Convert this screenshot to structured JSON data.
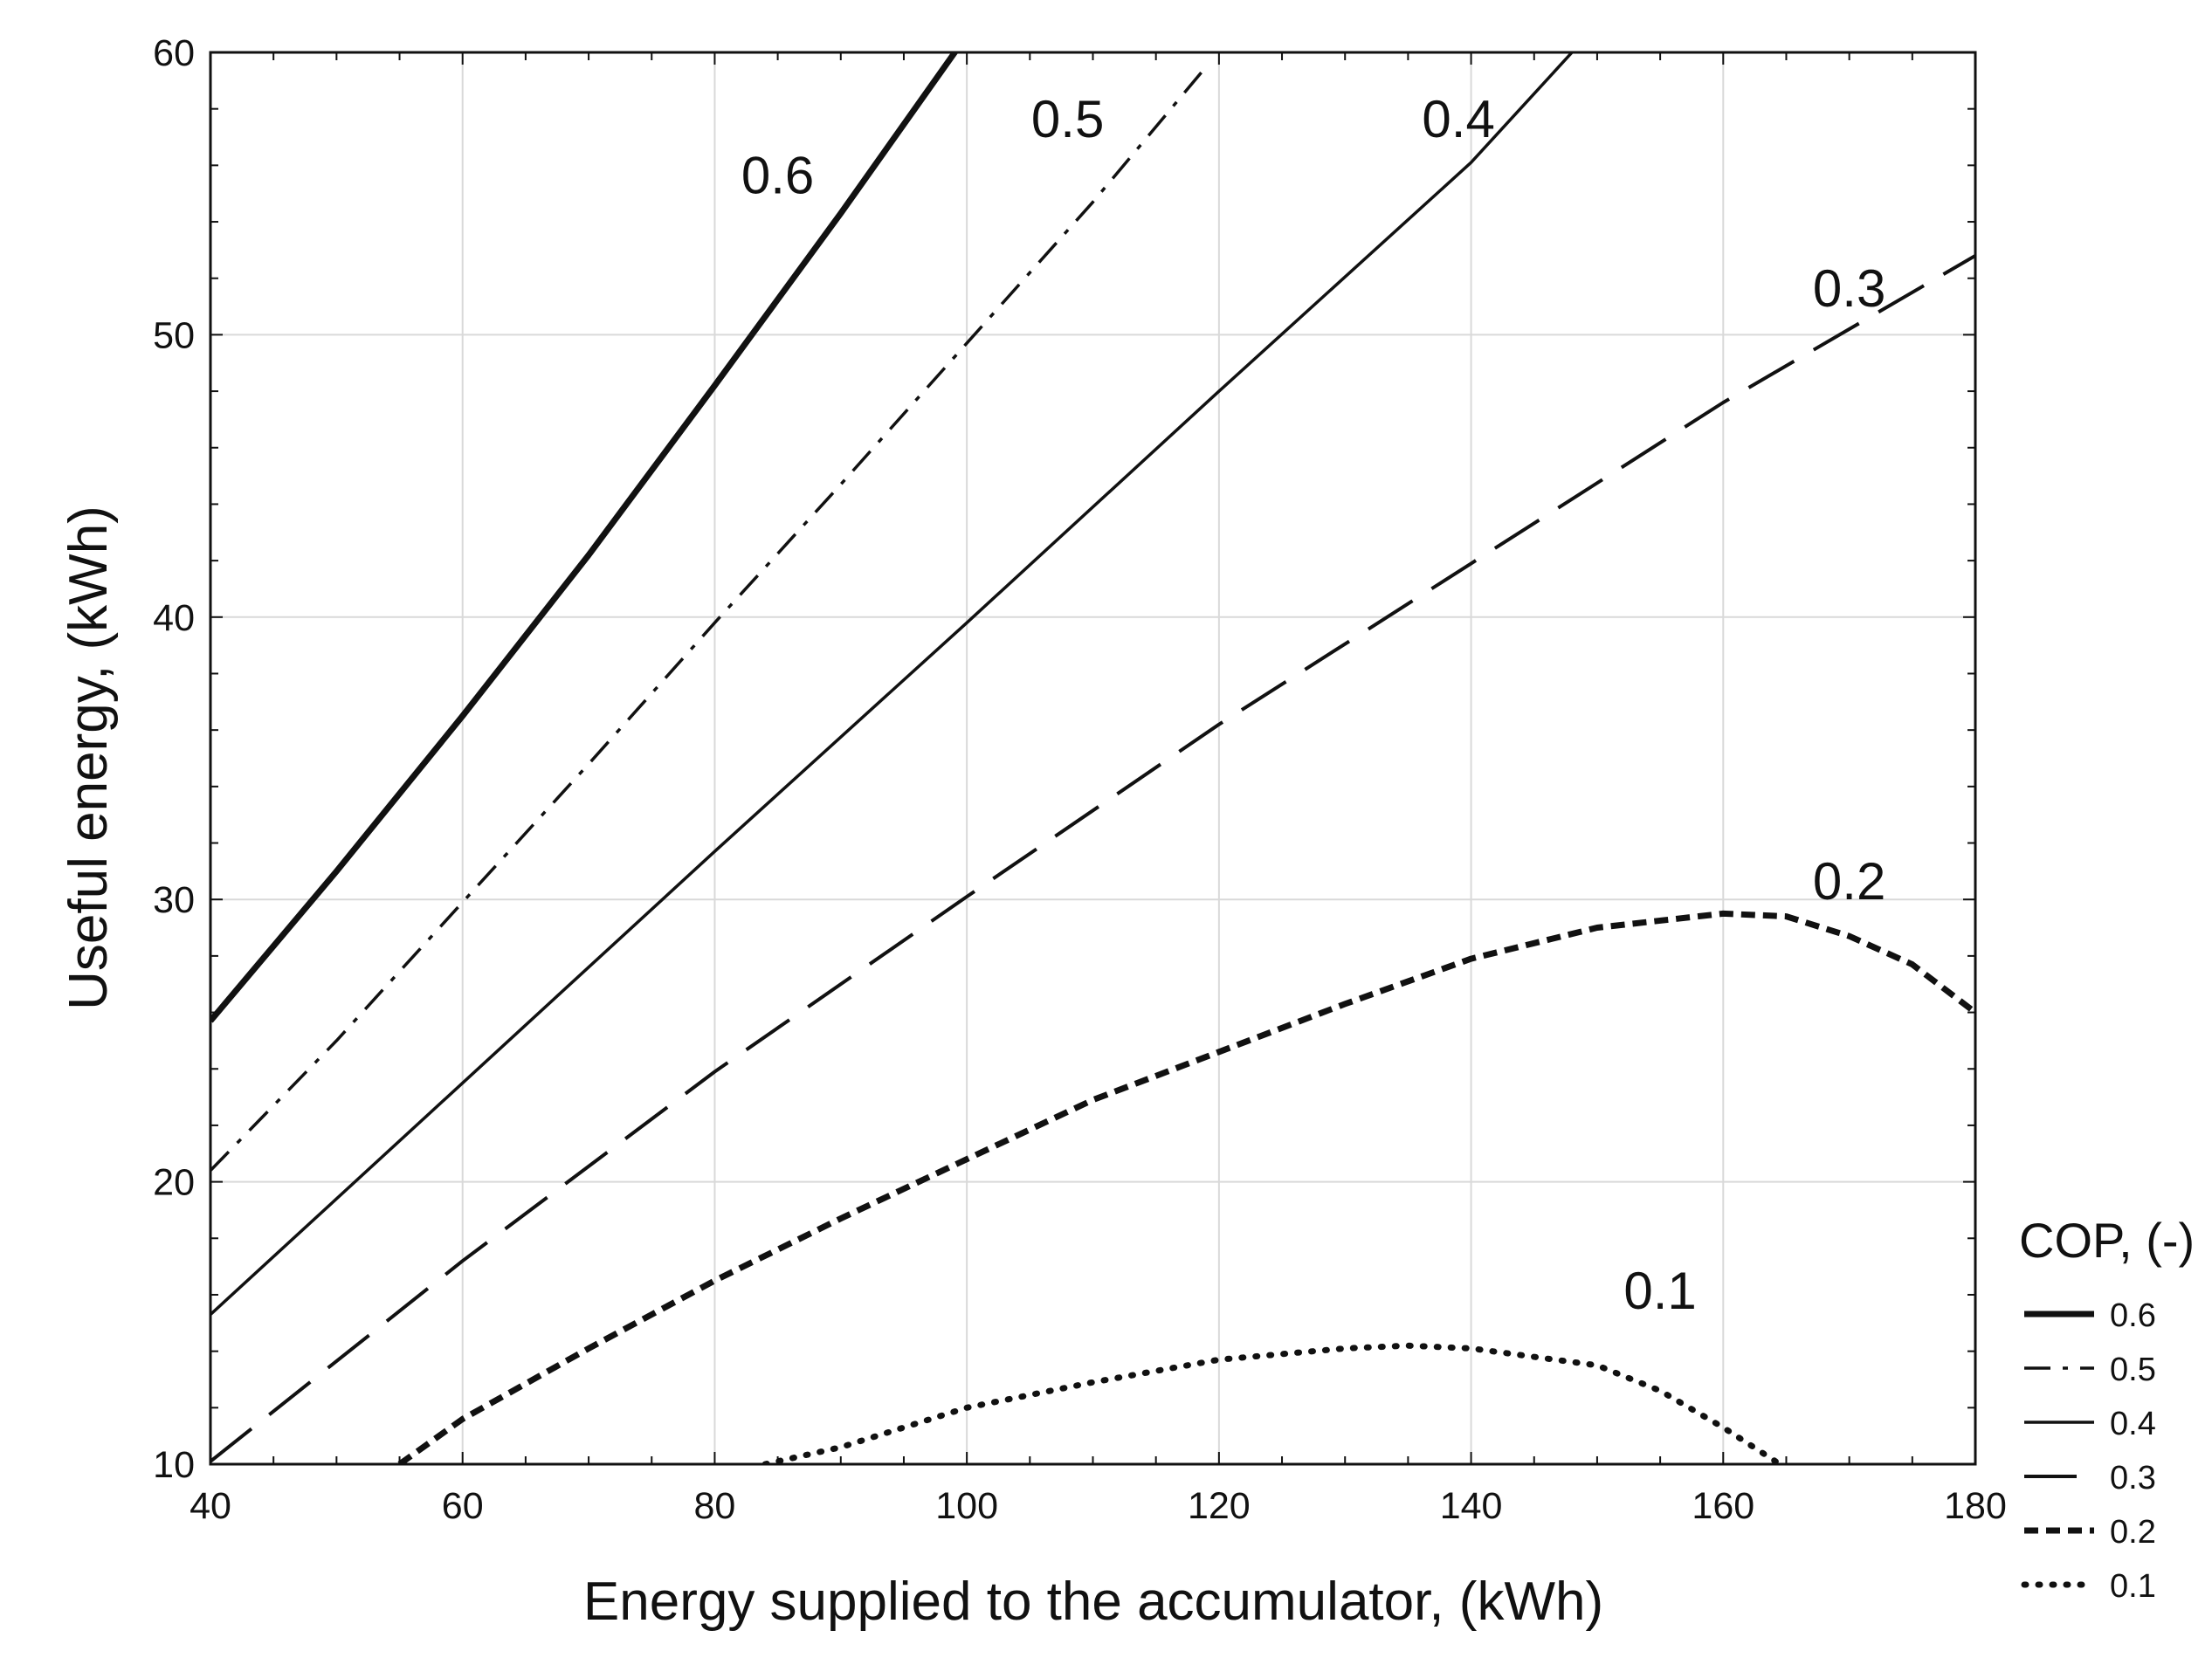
{
  "chart_data": {
    "type": "line",
    "title": "",
    "xlabel": "Energy supplied to the accumulator, (kWh)",
    "ylabel": "Useful energy, (kWh)",
    "xlim": [
      40,
      180
    ],
    "ylim": [
      10,
      60
    ],
    "xticks": [
      "40",
      "60",
      "80",
      "100",
      "120",
      "140",
      "160",
      "180"
    ],
    "yticks": [
      "10",
      "20",
      "30",
      "40",
      "50",
      "60"
    ],
    "grid": true,
    "legend": {
      "title": "COP, (-)",
      "placement": "right-bottom outside"
    },
    "series": [
      {
        "name": "0.6",
        "style": "solid-thick",
        "x": [
          40,
          50,
          60,
          70,
          80,
          90,
          100
        ],
        "y": [
          25.7,
          31,
          36.5,
          42.2,
          48.2,
          54.3,
          60.6
        ],
        "label_at": [
          85,
          55
        ]
      },
      {
        "name": "0.5",
        "style": "dash-dot",
        "x": [
          40,
          50,
          60,
          70,
          80,
          90,
          100,
          110,
          119
        ],
        "y": [
          20.4,
          25,
          29.9,
          34.8,
          39.8,
          44.7,
          49.7,
          54.7,
          59.5
        ],
        "label_at": [
          108,
          57
        ]
      },
      {
        "name": "0.4",
        "style": "solid",
        "x": [
          40,
          60,
          80,
          100,
          120,
          140,
          148
        ],
        "y": [
          15.3,
          23.5,
          31.7,
          39.8,
          48,
          56.1,
          60
        ]
      },
      {
        "name": "0.3",
        "style": "long-dash",
        "x": [
          40,
          60,
          80,
          100,
          120,
          140,
          160,
          180
        ],
        "y": [
          10.1,
          17.2,
          23.9,
          30.1,
          36.2,
          41.9,
          47.6,
          52.8
        ],
        "label_at": [
          170,
          51
        ]
      },
      {
        "name": "0.2",
        "style": "short-dash",
        "x": [
          55,
          60,
          70,
          80,
          90,
          100,
          110,
          120,
          130,
          140,
          150,
          160,
          165,
          170,
          175,
          180
        ],
        "y": [
          10,
          11.6,
          14.1,
          16.5,
          18.7,
          20.8,
          22.9,
          24.6,
          26.3,
          27.9,
          29,
          29.5,
          29.4,
          28.7,
          27.7,
          26
        ]
      },
      {
        "name": "0.1",
        "style": "dotted",
        "x": [
          84,
          90,
          100,
          110,
          120,
          130,
          135,
          140,
          150,
          155,
          160,
          164.5
        ],
        "y": [
          10,
          10.6,
          12,
          12.9,
          13.7,
          14.1,
          14.2,
          14.1,
          13.5,
          12.6,
          11.3,
          10
        ]
      }
    ]
  }
}
